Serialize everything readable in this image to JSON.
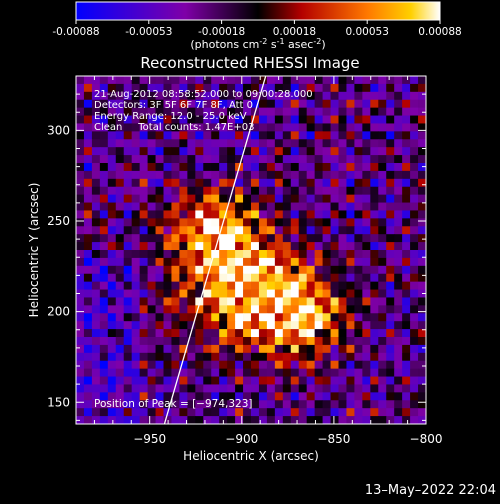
{
  "colorbar": {
    "ticks": [
      "-0.00088",
      "-0.00053",
      "-0.00018",
      "0.00018",
      "0.00053",
      "0.00088"
    ],
    "units_prefix": "(photons cm",
    "units_exp1": "-2",
    "units_mid": " s",
    "units_exp2": "-1",
    "units_mid2": " asec",
    "units_exp3": "-2",
    "units_suffix": ")"
  },
  "chart_data": {
    "type": "heatmap",
    "title": "Reconstructed RHESSI Image",
    "xlabel": "Heliocentric X (arcsec)",
    "ylabel": "Heliocentric Y (arcsec)",
    "xlim": [
      -990,
      -800
    ],
    "ylim": [
      138,
      330
    ],
    "x_ticks": [
      -950,
      -900,
      -850,
      -800
    ],
    "y_ticks": [
      150,
      200,
      250,
      300
    ],
    "x_tick_labels": [
      "−950",
      "−900",
      "−850",
      "−800"
    ],
    "y_tick_labels": [
      "150",
      "200",
      "250",
      "300"
    ],
    "color_range": [
      -0.00088,
      0.00088
    ],
    "peak": [
      -974,
      323
    ],
    "limb_line": [
      [
        -942,
        138
      ],
      [
        -887,
        330
      ]
    ],
    "bright_region_centers": [
      [
        -900,
        210
      ],
      [
        -915,
        245
      ],
      [
        -870,
        200
      ]
    ],
    "annotations": [
      "21-Aug-2012 08:58:52.000 to 09:00:28.000",
      "Detectors: 3F 5F 6F 7F 8F, Att 0",
      "Energy Range: 12.0 - 25.0 keV",
      "Clean     Total counts: 1.47E+03"
    ],
    "peak_label": "Position of Peak = [−974,323]"
  },
  "footer": {
    "timestamp": "13–May–2022 22:04"
  }
}
